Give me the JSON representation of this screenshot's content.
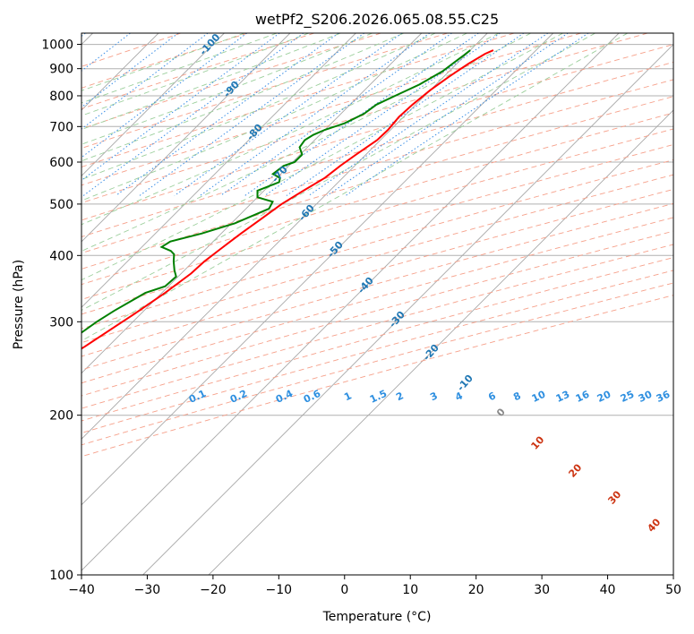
{
  "chart_data": {
    "type": "line",
    "title": "wetPf2_S206.2026.065.08.55.C25",
    "xlabel": "Temperature (°C)",
    "ylabel": "Pressure (hPa)",
    "xlim": [
      -40,
      50
    ],
    "ylim": [
      1050,
      100
    ],
    "x_ticks": [
      -40,
      -30,
      -20,
      -10,
      0,
      10,
      20,
      30,
      40,
      50
    ],
    "x_tick_labels": [
      "−40",
      "−30",
      "−20",
      "−10",
      "0",
      "10",
      "20",
      "30",
      "40",
      "50"
    ],
    "y_ticks": [
      1000,
      900,
      800,
      700,
      600,
      500,
      400,
      300,
      200,
      100
    ],
    "y_tick_labels": [
      "1000",
      "900",
      "800",
      "700",
      "600",
      "500",
      "400",
      "300",
      "200",
      "100"
    ],
    "y_scale": "log",
    "skew": "skew-T log-p",
    "series": [
      {
        "name": "Temperature",
        "color": "#ff0000",
        "points": [
          [
            23.5,
            975
          ],
          [
            22.8,
            960
          ],
          [
            21.8,
            920
          ],
          [
            20.8,
            870
          ],
          [
            20.0,
            820
          ],
          [
            19.5,
            770
          ],
          [
            19.3,
            730
          ],
          [
            19.6,
            690
          ],
          [
            19.5,
            660
          ],
          [
            18.5,
            620
          ],
          [
            17.8,
            590
          ],
          [
            17.3,
            560
          ],
          [
            16.0,
            530
          ],
          [
            14.7,
            500
          ],
          [
            13.9,
            470
          ],
          [
            13.0,
            440
          ],
          [
            12.2,
            410
          ],
          [
            11.7,
            390
          ],
          [
            11.5,
            370
          ],
          [
            10.5,
            340
          ],
          [
            9.0,
            310
          ],
          [
            6.5,
            270
          ],
          [
            4.5,
            245
          ],
          [
            4.0,
            235
          ],
          [
            4.5,
            225
          ],
          [
            6.5,
            212
          ],
          [
            9.0,
            200
          ],
          [
            9.5,
            190
          ],
          [
            8.6,
            175
          ],
          [
            7.5,
            160
          ],
          [
            7.5,
            145
          ],
          [
            7.3,
            130
          ],
          [
            6.5,
            120
          ],
          [
            5.5,
            112
          ],
          [
            6.0,
            107
          ],
          [
            6.5,
            103
          ],
          [
            7.0,
            100
          ]
        ]
      },
      {
        "name": "Dewpoint",
        "color": "#008000",
        "points": [
          [
            20.0,
            975
          ],
          [
            19.8,
            955
          ],
          [
            19.5,
            930
          ],
          [
            19.0,
            890
          ],
          [
            17.5,
            840
          ],
          [
            15.5,
            800
          ],
          [
            14.0,
            770
          ],
          [
            13.5,
            740
          ],
          [
            12.0,
            710
          ],
          [
            10.0,
            690
          ],
          [
            9.0,
            675
          ],
          [
            8.5,
            660
          ],
          [
            8.8,
            640
          ],
          [
            10.3,
            620
          ],
          [
            10.3,
            600
          ],
          [
            9.2,
            590
          ],
          [
            8.8,
            570
          ],
          [
            10.5,
            560
          ],
          [
            11.0,
            550
          ],
          [
            9.0,
            530
          ],
          [
            10.0,
            515
          ],
          [
            13.0,
            505
          ],
          [
            13.5,
            490
          ],
          [
            10.5,
            460
          ],
          [
            7.0,
            440
          ],
          [
            3.5,
            425
          ],
          [
            3.0,
            415
          ],
          [
            5.0,
            408
          ],
          [
            6.0,
            402
          ],
          [
            7.0,
            390
          ],
          [
            8.5,
            375
          ],
          [
            9.7,
            365
          ],
          [
            9.5,
            350
          ],
          [
            7.5,
            340
          ],
          [
            5.5,
            315
          ],
          [
            4.5,
            300
          ],
          [
            3.5,
            280
          ],
          [
            2.5,
            260
          ],
          [
            1.5,
            248
          ],
          [
            0,
            242
          ],
          [
            -5,
            237
          ],
          [
            -10,
            233
          ],
          [
            -15,
            230
          ],
          [
            -20,
            228
          ],
          [
            -28,
            225
          ],
          [
            -32,
            215
          ],
          [
            -33,
            205
          ],
          [
            -32,
            196
          ],
          [
            -25,
            193
          ],
          [
            -20,
            190
          ],
          [
            -18,
            185
          ],
          [
            -16,
            178
          ],
          [
            -12,
            168
          ],
          [
            -8,
            158
          ],
          [
            -5,
            150
          ],
          [
            -3,
            140
          ],
          [
            -1,
            130
          ],
          [
            0.5,
            118
          ],
          [
            2,
            108
          ],
          [
            3,
            100
          ]
        ]
      }
    ],
    "label_colors": {
      "dry_adiabat": "#cc3311",
      "moist_adiabat": "#1f77b4",
      "mixing_ratio": "#2e8fe0",
      "isotherm": "#888888"
    },
    "dry_adiabat_labels": [
      "-100",
      "-90",
      "-80",
      "-70",
      "-60",
      "-50",
      "-40",
      "-30",
      "-20",
      "-10",
      "0",
      "10",
      "20",
      "30",
      "40"
    ],
    "mixing_ratio_labels": [
      "0.1",
      "0.2",
      "0.4",
      "0.6",
      "1",
      "1.5",
      "2",
      "3",
      "4",
      "6",
      "8",
      "10",
      "13",
      "16",
      "20",
      "25",
      "30",
      "36"
    ]
  }
}
